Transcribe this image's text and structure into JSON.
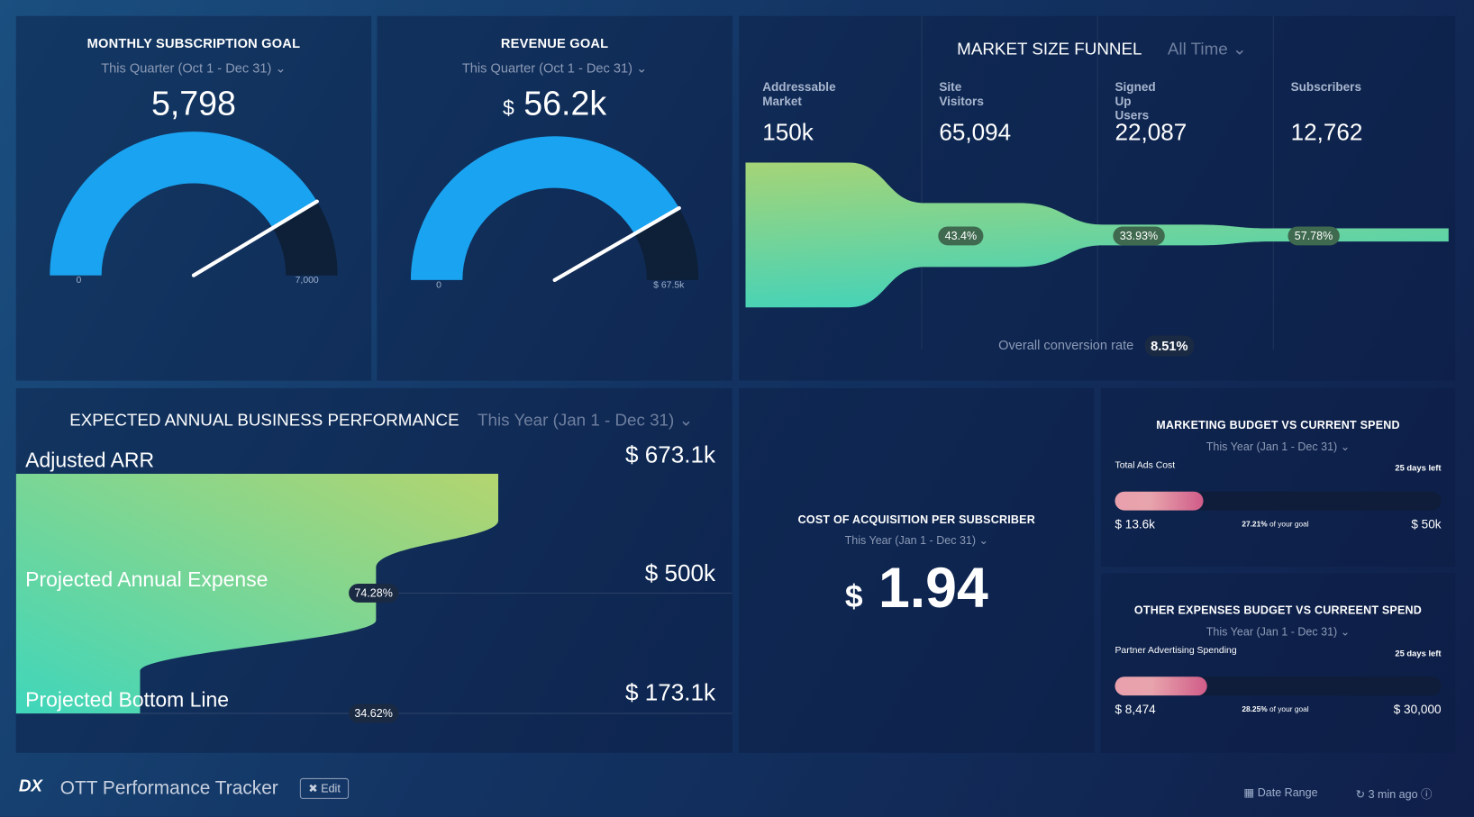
{
  "subscription_goal": {
    "title": "MONTHLY SUBSCRIPTION GOAL",
    "period": "This Quarter (Oct 1 - Dec 31)",
    "value": "5,798",
    "min": "0",
    "max": "7,000",
    "fraction": 0.828
  },
  "revenue_goal": {
    "title": "REVENUE GOAL",
    "period": "This Quarter (Oct 1 - Dec 31)",
    "currency": "$",
    "value": "56.2k",
    "min": "0",
    "max": "$ 67.5k",
    "fraction": 0.833
  },
  "funnel": {
    "title": "MARKET SIZE FUNNEL",
    "period": "All Time",
    "stages": [
      {
        "label": "Addressable Market",
        "value": "150k"
      },
      {
        "label": "Site Visitors",
        "value": "65,094",
        "rate": "43.4%"
      },
      {
        "label": "Signed Up Users",
        "value": "22,087",
        "rate": "33.93%"
      },
      {
        "label": "Subscribers",
        "value": "12,762",
        "rate": "57.78%"
      }
    ],
    "overall_label": "Overall conversion rate",
    "overall_value": "8.51%"
  },
  "performance": {
    "title": "EXPECTED ANNUAL BUSINESS PERFORMANCE",
    "period": "This Year (Jan 1 - Dec 31)",
    "rows": [
      {
        "label": "Adjusted ARR",
        "value": "$ 673.1k"
      },
      {
        "label": "Projected Annual Expense",
        "value": "$ 500k",
        "pct": "74.28%"
      },
      {
        "label": "Projected Bottom Line",
        "value": "$ 173.1k",
        "pct": "34.62%"
      }
    ]
  },
  "cac": {
    "title": "COST OF ACQUISITION PER SUBSCRIBER",
    "period": "This Year (Jan 1 - Dec 31)",
    "currency": "$",
    "value": "1.94"
  },
  "marketing": {
    "title": "MARKETING BUDGET VS CURRENT SPEND",
    "period": "This Year (Jan 1 - Dec 31)",
    "metric": "Total Ads Cost",
    "days_left": "25 days left",
    "current": "$ 13.6k",
    "pct": "27.21%",
    "of_goal": "of your goal",
    "goal": "$ 50k",
    "fraction": 0.2721
  },
  "other": {
    "title": "OTHER EXPENSES BUDGET VS CURREENT SPEND",
    "period": "This Year (Jan 1 - Dec 31)",
    "metric": "Partner Advertising Spending",
    "days_left": "25 days left",
    "current": "$ 8,474",
    "pct": "28.25%",
    "of_goal": "of your goal",
    "goal": "$ 30,000",
    "fraction": 0.2825
  },
  "footer": {
    "logo": "DX",
    "title": "OTT Performance Tracker",
    "edit": "Edit",
    "date_range": "Date Range",
    "updated": "3 min ago"
  },
  "colors": {
    "gauge": "#1aa3f0",
    "funnel_start": "#a5d477",
    "funnel_end": "#45d3b8",
    "bar": "#e07a9a"
  }
}
